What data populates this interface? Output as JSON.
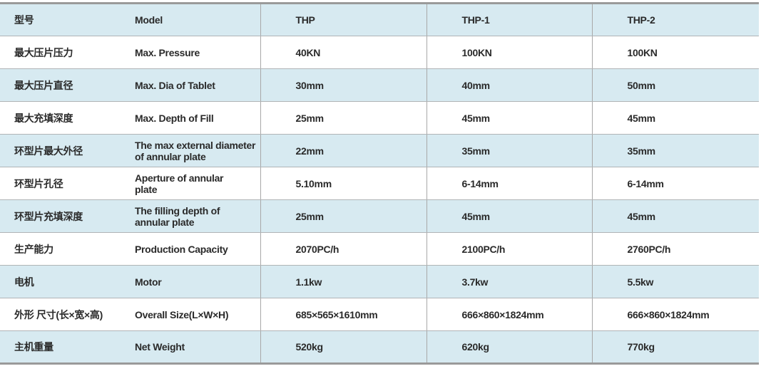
{
  "colors": {
    "row_alt": "#d7eaf1",
    "row_base": "#ffffff",
    "text": "#2a2a2a"
  },
  "rows": [
    {
      "zh": "型号",
      "en": "Model",
      "v": [
        "THP",
        "THP-1",
        "THP-2"
      ]
    },
    {
      "zh": "最大压片压力",
      "en": "Max. Pressure",
      "v": [
        "40KN",
        "100KN",
        "100KN"
      ]
    },
    {
      "zh": "最大压片直径",
      "en": "Max. Dia of Tablet",
      "v": [
        "30mm",
        "40mm",
        "50mm"
      ]
    },
    {
      "zh": "最大充填深度",
      "en": "Max. Depth of Fill",
      "v": [
        "25mm",
        "45mm",
        "45mm"
      ]
    },
    {
      "zh": "环型片最大外径",
      "en": "The max external diameter of annular plate",
      "v": [
        "22mm",
        "35mm",
        "35mm"
      ]
    },
    {
      "zh": "环型片孔径",
      "en": "Aperture of annular plate",
      "v": [
        "5.10mm",
        "6-14mm",
        "6-14mm"
      ]
    },
    {
      "zh": "环型片充填深度",
      "en": "The filling depth of annular plate",
      "v": [
        "25mm",
        "45mm",
        "45mm"
      ]
    },
    {
      "zh": "生产能力",
      "en": "Production Capacity",
      "v": [
        "2070PC/h",
        "2100PC/h",
        "2760PC/h"
      ]
    },
    {
      "zh": "电机",
      "en": "Motor",
      "v": [
        "1.1kw",
        "3.7kw",
        "5.5kw"
      ]
    },
    {
      "zh": "外形 尺寸(长×宽×高)",
      "en": "Overall Size(L×W×H)",
      "v": [
        "685×565×1610mm",
        "666×860×1824mm",
        "666×860×1824mm"
      ]
    },
    {
      "zh": "主机重量",
      "en": "Net Weight",
      "v": [
        "520kg",
        "620kg",
        "770kg"
      ]
    }
  ]
}
